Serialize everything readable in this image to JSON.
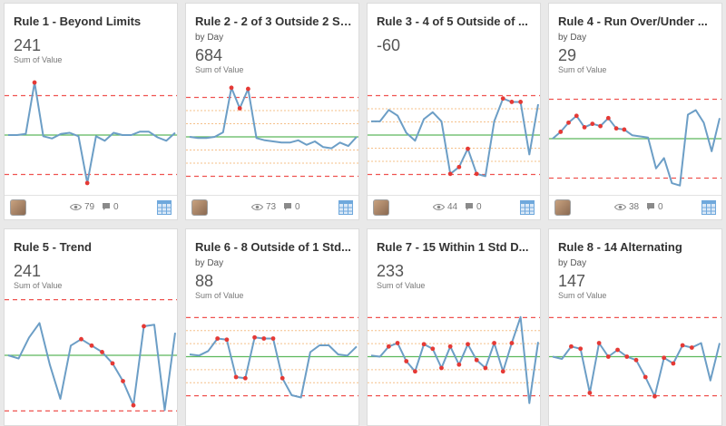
{
  "colors": {
    "line": "#6c9ec6",
    "center": "#5cb85c",
    "limit": "#ef5350",
    "band": "#f5c08a",
    "violation": "#e53935",
    "card_bg": "#ffffff",
    "page_bg": "#e9e9e9"
  },
  "cards": [
    {
      "title": "Rule 1 - Beyond Limits",
      "subtitle": "",
      "value": "241",
      "value_label": "Sum of Value",
      "views": "79",
      "comments": "0",
      "chart_data": {
        "type": "line",
        "ylim": [
          0,
          1
        ],
        "center": 0.5,
        "limits": [
          0.155,
          0.845
        ],
        "bands": [],
        "values": [
          0.5,
          0.5,
          0.51,
          0.96,
          0.49,
          0.47,
          0.51,
          0.52,
          0.49,
          0.08,
          0.49,
          0.45,
          0.52,
          0.5,
          0.5,
          0.53,
          0.53,
          0.48,
          0.45,
          0.52
        ],
        "violations": [
          3,
          9
        ]
      }
    },
    {
      "title": "Rule 2 - 2 of 3 Outside 2 Std...",
      "subtitle": "by Day",
      "value": "684",
      "value_label": "Sum of Value",
      "views": "73",
      "comments": "0",
      "chart_data": {
        "type": "line",
        "ylim": [
          0,
          1
        ],
        "center": 0.5,
        "limits": [
          0.155,
          0.845
        ],
        "bands": [
          0.27,
          0.385,
          0.615,
          0.73
        ],
        "values": [
          0.5,
          0.49,
          0.49,
          0.5,
          0.54,
          0.93,
          0.75,
          0.92,
          0.49,
          0.47,
          0.46,
          0.45,
          0.45,
          0.47,
          0.43,
          0.46,
          0.41,
          0.4,
          0.45,
          0.42,
          0.5
        ],
        "violations": [
          5,
          6,
          7
        ]
      }
    },
    {
      "title": "Rule 3 - 4 of 5 Outside of ...",
      "subtitle": "",
      "value": "-60",
      "value_label": "",
      "views": "44",
      "comments": "0",
      "chart_data": {
        "type": "line",
        "ylim": [
          0,
          1
        ],
        "center": 0.5,
        "limits": [
          0.155,
          0.845
        ],
        "bands": [
          0.27,
          0.385,
          0.615,
          0.73
        ],
        "values": [
          0.62,
          0.62,
          0.72,
          0.67,
          0.52,
          0.45,
          0.64,
          0.7,
          0.62,
          0.16,
          0.22,
          0.38,
          0.16,
          0.14,
          0.62,
          0.82,
          0.79,
          0.79,
          0.33,
          0.77
        ],
        "violations": [
          9,
          10,
          11,
          12,
          15,
          16,
          17
        ]
      }
    },
    {
      "title": "Rule 4 - Run Over/Under ...",
      "subtitle": "by Day",
      "value": "29",
      "value_label": "Sum of Value",
      "views": "38",
      "comments": "0",
      "chart_data": {
        "type": "line",
        "ylim": [
          0,
          1
        ],
        "center": 0.5,
        "limits": [
          0.155,
          0.845
        ],
        "bands": [],
        "values": [
          0.5,
          0.56,
          0.64,
          0.7,
          0.6,
          0.63,
          0.61,
          0.68,
          0.59,
          0.58,
          0.53,
          0.52,
          0.51,
          0.24,
          0.33,
          0.11,
          0.09,
          0.71,
          0.75,
          0.64,
          0.39,
          0.68
        ],
        "violations": [
          1,
          2,
          3,
          4,
          5,
          6,
          7,
          8,
          9
        ]
      }
    },
    {
      "title": "Rule 5 - Trend",
      "subtitle": "",
      "value": "241",
      "value_label": "Sum of Value",
      "views": "",
      "comments": "",
      "chart_data": {
        "type": "line",
        "ylim": [
          0,
          1
        ],
        "center": 0.5,
        "limits": [
          0.155,
          0.845
        ],
        "bands": [],
        "values": [
          0.5,
          0.48,
          0.61,
          0.7,
          0.44,
          0.23,
          0.56,
          0.6,
          0.56,
          0.52,
          0.45,
          0.34,
          0.19,
          0.68,
          0.69,
          0.16,
          0.64
        ],
        "violations": [
          7,
          8,
          9,
          10,
          11,
          12,
          13
        ]
      }
    },
    {
      "title": "Rule 6 - 8 Outside of 1 Std...",
      "subtitle": "by Day",
      "value": "88",
      "value_label": "Sum of Value",
      "views": "",
      "comments": "",
      "chart_data": {
        "type": "line",
        "ylim": [
          0,
          1
        ],
        "center": 0.5,
        "limits": [
          0.155,
          0.845
        ],
        "bands": [
          0.27,
          0.385,
          0.615,
          0.73
        ],
        "values": [
          0.52,
          0.51,
          0.55,
          0.66,
          0.65,
          0.32,
          0.31,
          0.67,
          0.66,
          0.66,
          0.31,
          0.16,
          0.14,
          0.54,
          0.6,
          0.6,
          0.52,
          0.51,
          0.59
        ],
        "violations": [
          3,
          4,
          5,
          6,
          7,
          8,
          9,
          10
        ]
      }
    },
    {
      "title": "Rule 7 - 15 Within 1 Std D...",
      "subtitle": "",
      "value": "233",
      "value_label": "Sum of Value",
      "views": "",
      "comments": "",
      "chart_data": {
        "type": "line",
        "ylim": [
          0,
          1
        ],
        "center": 0.5,
        "limits": [
          0.155,
          0.845
        ],
        "bands": [
          0.27,
          0.385,
          0.615,
          0.73
        ],
        "values": [
          0.51,
          0.5,
          0.59,
          0.62,
          0.46,
          0.37,
          0.61,
          0.57,
          0.4,
          0.59,
          0.43,
          0.61,
          0.47,
          0.4,
          0.62,
          0.37,
          0.62,
          0.85,
          0.09,
          0.63
        ],
        "violations": [
          2,
          3,
          4,
          5,
          6,
          7,
          8,
          9,
          10,
          11,
          12,
          13,
          14,
          15,
          16
        ]
      }
    },
    {
      "title": "Rule 8 - 14 Alternating",
      "subtitle": "by Day",
      "value": "147",
      "value_label": "Sum of Value",
      "views": "",
      "comments": "",
      "chart_data": {
        "type": "line",
        "ylim": [
          0,
          1
        ],
        "center": 0.5,
        "limits": [
          0.155,
          0.845
        ],
        "bands": [],
        "values": [
          0.5,
          0.48,
          0.59,
          0.57,
          0.18,
          0.62,
          0.5,
          0.56,
          0.5,
          0.47,
          0.32,
          0.15,
          0.49,
          0.44,
          0.6,
          0.58,
          0.62,
          0.29,
          0.62
        ],
        "violations": [
          2,
          3,
          4,
          5,
          6,
          7,
          8,
          9,
          10,
          11,
          12,
          13,
          14,
          15
        ]
      }
    }
  ]
}
